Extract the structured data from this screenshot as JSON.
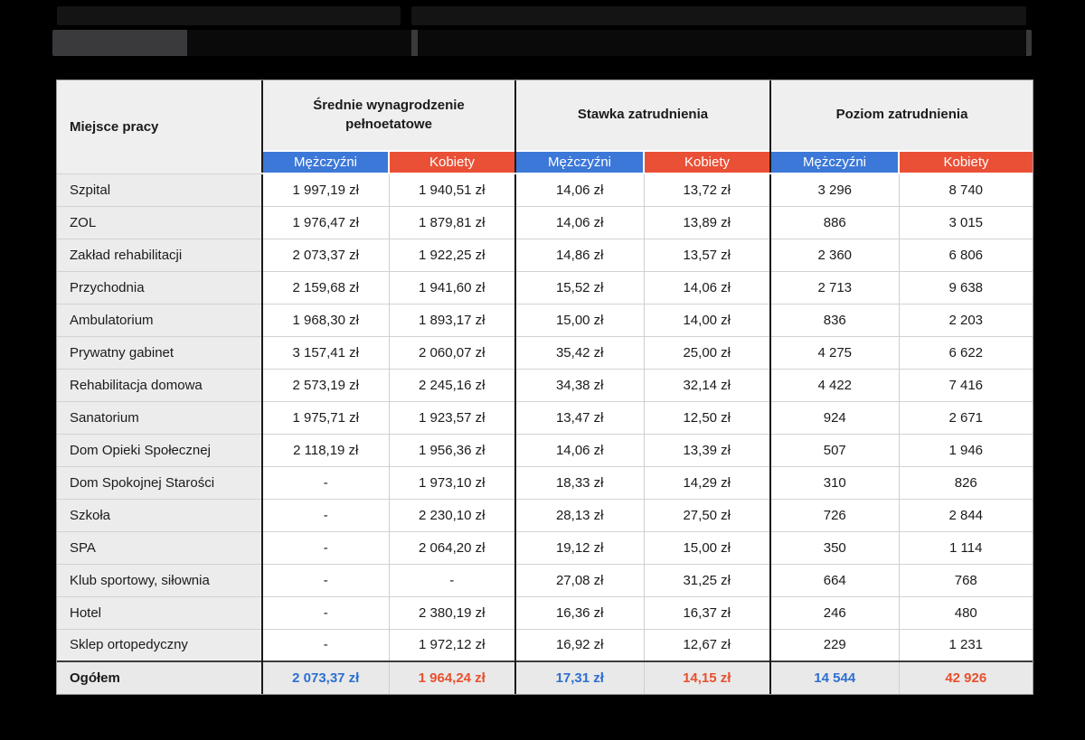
{
  "colors": {
    "men_header": "#3c78d8",
    "women_header": "#ea5036",
    "men_text": "#2e6fd0",
    "women_text": "#e8502f"
  },
  "table": {
    "corner": "Miejsce pracy",
    "groups": [
      "Średnie wynagrodzenie pełnoetatowe",
      "Stawka zatrudnienia",
      "Poziom zatrudnienia"
    ],
    "sub": [
      "Mężczyźni",
      "Kobiety",
      "Mężczyźni",
      "Kobiety",
      "Mężczyźni",
      "Kobiety"
    ],
    "rows": [
      {
        "name": "Szpital",
        "values": [
          "1 997,19 zł",
          "1 940,51 zł",
          "14,06 zł",
          "13,72 zł",
          "3 296",
          "8 740"
        ]
      },
      {
        "name": "ZOL",
        "values": [
          "1 976,47 zł",
          "1 879,81 zł",
          "14,06 zł",
          "13,89 zł",
          "886",
          "3 015"
        ]
      },
      {
        "name": "Zakład rehabilitacji",
        "values": [
          "2 073,37 zł",
          "1 922,25 zł",
          "14,86 zł",
          "13,57 zł",
          "2 360",
          "6 806"
        ]
      },
      {
        "name": "Przychodnia",
        "values": [
          "2 159,68 zł",
          "1 941,60 zł",
          "15,52 zł",
          "14,06 zł",
          "2 713",
          "9 638"
        ]
      },
      {
        "name": "Ambulatorium",
        "values": [
          "1 968,30 zł",
          "1 893,17 zł",
          "15,00 zł",
          "14,00 zł",
          "836",
          "2 203"
        ]
      },
      {
        "name": "Prywatny gabinet",
        "values": [
          "3 157,41 zł",
          "2 060,07 zł",
          "35,42 zł",
          "25,00 zł",
          "4 275",
          "6 622"
        ]
      },
      {
        "name": "Rehabilitacja domowa",
        "values": [
          "2 573,19 zł",
          "2 245,16 zł",
          "34,38 zł",
          "32,14 zł",
          "4 422",
          "7 416"
        ]
      },
      {
        "name": "Sanatorium",
        "values": [
          "1 975,71 zł",
          "1 923,57 zł",
          "13,47 zł",
          "12,50 zł",
          "924",
          "2 671"
        ]
      },
      {
        "name": "Dom Opieki Społecznej",
        "values": [
          "2 118,19 zł",
          "1 956,36 zł",
          "14,06 zł",
          "13,39 zł",
          "507",
          "1 946"
        ]
      },
      {
        "name": "Dom Spokojnej Starości",
        "values": [
          "-",
          "1 973,10 zł",
          "18,33 zł",
          "14,29 zł",
          "310",
          "826"
        ]
      },
      {
        "name": "Szkoła",
        "values": [
          "-",
          "2 230,10 zł",
          "28,13 zł",
          "27,50 zł",
          "726",
          "2 844"
        ]
      },
      {
        "name": "SPA",
        "values": [
          "-",
          "2 064,20 zł",
          "19,12 zł",
          "15,00 zł",
          "350",
          "1 114"
        ]
      },
      {
        "name": "Klub sportowy, siłownia",
        "values": [
          "-",
          "-",
          "27,08 zł",
          "31,25 zł",
          "664",
          "768"
        ]
      },
      {
        "name": "Hotel",
        "values": [
          "-",
          "2 380,19 zł",
          "16,36 zł",
          "16,37 zł",
          "246",
          "480"
        ]
      },
      {
        "name": "Sklep ortopedyczny",
        "values": [
          "-",
          "1 972,12 zł",
          "16,92 zł",
          "12,67 zł",
          "229",
          "1 231"
        ]
      }
    ],
    "total": {
      "name": "Ogółem",
      "values": [
        "2 073,37 zł",
        "1 964,24 zł",
        "17,31 zł",
        "14,15 zł",
        "14 544",
        "42 926"
      ]
    }
  }
}
